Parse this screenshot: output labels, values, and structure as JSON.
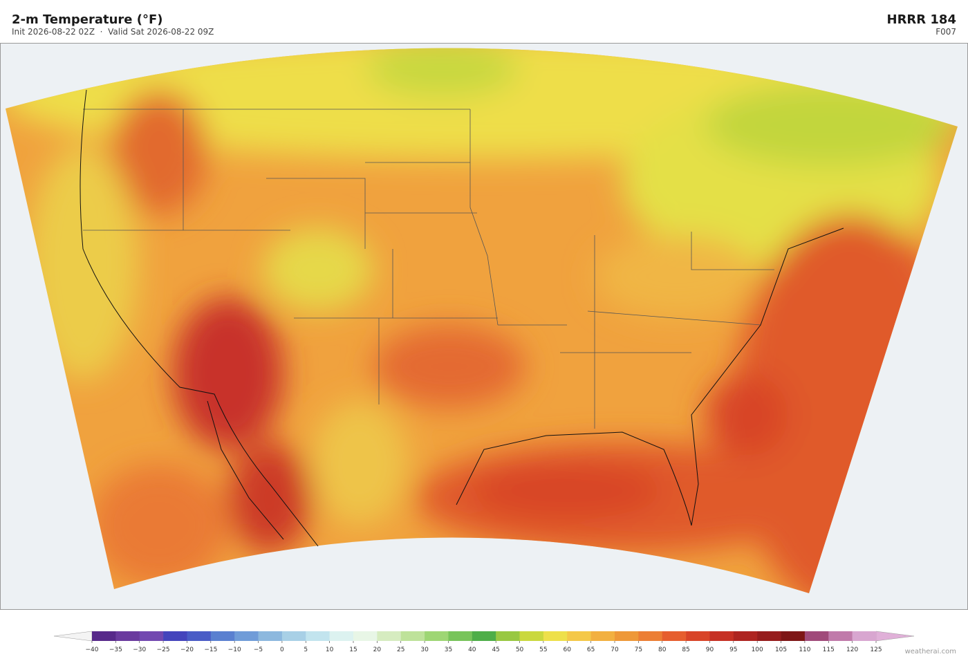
{
  "header": {
    "title": "2-m Temperature  (°F)",
    "subtitle": "Init 2026-08-22 02Z  ·  Valid Sat 2026-08-22 09Z",
    "model": "HRRR  184",
    "forecast_hour": "F007"
  },
  "colorbar": {
    "ticks": [
      {
        "value": -40,
        "label": "−40"
      },
      {
        "value": -35,
        "label": "−35"
      },
      {
        "value": -30,
        "label": "−30"
      },
      {
        "value": -25,
        "label": "−25"
      },
      {
        "value": -20,
        "label": "−20"
      },
      {
        "value": -15,
        "label": "−15"
      },
      {
        "value": -10,
        "label": "−10"
      },
      {
        "value": -5,
        "label": "−5"
      },
      0,
      5,
      10,
      15,
      20,
      25,
      30,
      35,
      40,
      45,
      50,
      55,
      60,
      65,
      70,
      75,
      80,
      85,
      90,
      95,
      100,
      105,
      110,
      115,
      120,
      125
    ],
    "colors": [
      "#57298a",
      "#6a3a9e",
      "#7248b0",
      "#4444bc",
      "#4a5cc6",
      "#5a80d0",
      "#709cd8",
      "#8cb8de",
      "#a8d0e6",
      "#c2e4ee",
      "#dcf2f0",
      "#e8f6e6",
      "#d6ecc0",
      "#bee29a",
      "#9ed674",
      "#78c45a",
      "#4eae48",
      "#98c842",
      "#cad83e",
      "#eee04a",
      "#f4c848",
      "#f2b040",
      "#ee9838",
      "#ec7e34",
      "#e65e2e",
      "#d84428",
      "#c63024",
      "#ae2420",
      "#961c1c",
      "#7e1616",
      "#a04a7a",
      "#c07aaa",
      "#d8a6d0"
    ],
    "under_color": "#f4f4f4",
    "over_color": "#e0b0d8"
  },
  "watermark": "weatherai.com"
}
